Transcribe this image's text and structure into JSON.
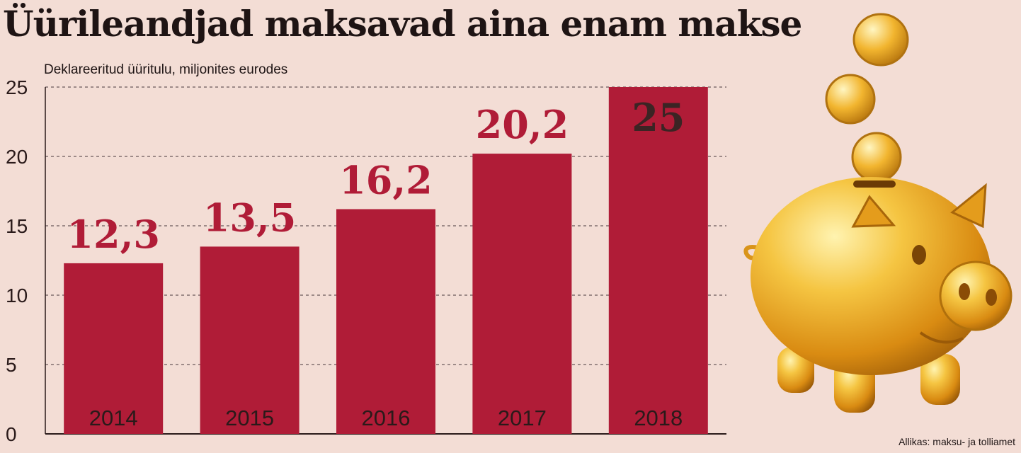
{
  "title": "Üürileandjad maksavad aina enam makse",
  "subtitle": "Deklareeritud üüritulu, miljonites eurodes",
  "source": "Allikas: maksu- ja tolliamet",
  "colors": {
    "background": "#f3ddd5",
    "bar": "#b01c37",
    "value_label": "#b01c37",
    "value_label_inside": "#3b2424",
    "year_label": "#2a1a1a",
    "gridline": "#6a5a5a",
    "gold": "#e9a82a"
  },
  "chart_data": {
    "type": "bar",
    "title": "Üürileandjad maksavad aina enam makse",
    "subtitle": "Deklareeritud üüritulu, miljonites eurodes",
    "categories": [
      "2014",
      "2015",
      "2016",
      "2017",
      "2018"
    ],
    "values": [
      12.3,
      13.5,
      16.2,
      20.2,
      25
    ],
    "value_labels": [
      "12,3",
      "13,5",
      "16,2",
      "20,2",
      "25"
    ],
    "ylim": [
      0,
      25
    ],
    "yticks": [
      0,
      5,
      10,
      15,
      20,
      25
    ],
    "grid": true,
    "legend": "none",
    "xlabel": "",
    "ylabel": ""
  },
  "illustration": {
    "icon": "piggy-bank-with-gold-coins-icon"
  }
}
